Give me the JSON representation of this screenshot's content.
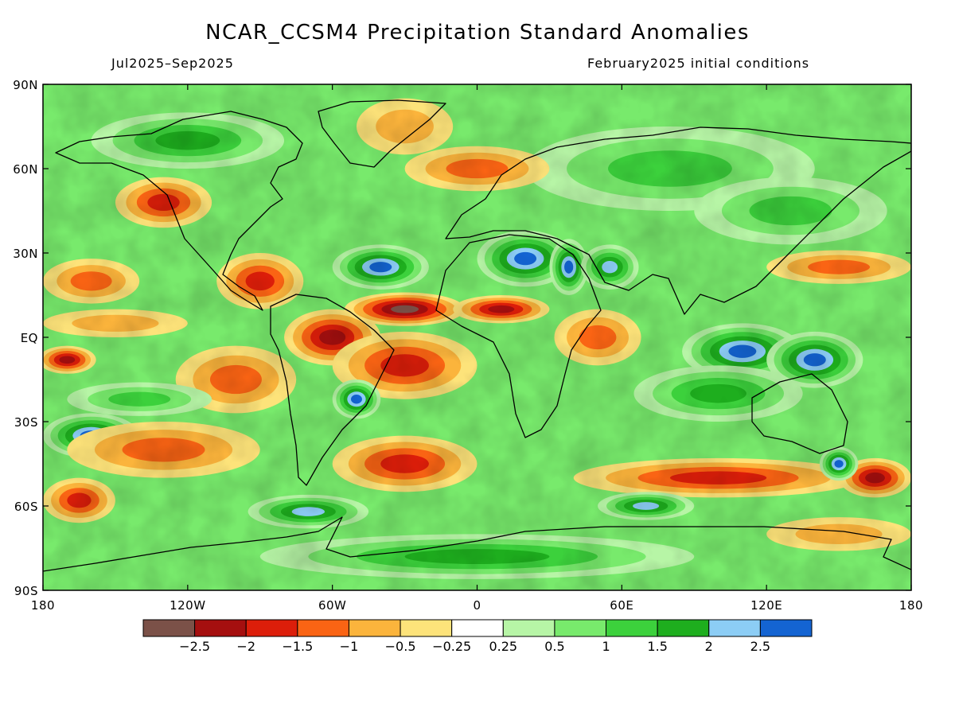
{
  "title": "NCAR_CCSM4 Precipitation Standard Anomalies",
  "subtitle_left": "Jul2025–Sep2025",
  "subtitle_right": "February2025 initial conditions",
  "axes": {
    "lat_labels": [
      "90N",
      "60N",
      "30N",
      "EQ",
      "30S",
      "60S",
      "90S"
    ],
    "lon_labels": [
      "180",
      "120W",
      "60W",
      "0",
      "60E",
      "120E",
      "180"
    ]
  },
  "colorbar": {
    "colors": [
      "#7b5148",
      "#a50f0f",
      "#dc1e0a",
      "#fa6414",
      "#fbb43c",
      "#fde37a",
      "#ffffff",
      "#b7f5a6",
      "#78ea6c",
      "#3cd13c",
      "#1eae1e",
      "#8ccdf5",
      "#1464d2"
    ],
    "labels": [
      "−2.5",
      "−2",
      "−1.5",
      "−1",
      "−0.5",
      "−0.25",
      "0.25",
      "0.5",
      "1",
      "1.5",
      "2",
      "2.5"
    ]
  },
  "fields": {
    "anomaly_blobs": [
      {
        "lon": -90,
        "lat": 20,
        "rx": 18,
        "ry": 10,
        "value": -1.5
      },
      {
        "lon": -130,
        "lat": 48,
        "rx": 20,
        "ry": 9,
        "value": -1.5
      },
      {
        "lon": -160,
        "lat": 20,
        "rx": 20,
        "ry": 8,
        "value": -1.0
      },
      {
        "lon": -150,
        "lat": 5,
        "rx": 30,
        "ry": 5,
        "value": -0.5
      },
      {
        "lon": -170,
        "lat": -8,
        "rx": 12,
        "ry": 5,
        "value": -2.0
      },
      {
        "lon": -100,
        "lat": -15,
        "rx": 25,
        "ry": 12,
        "value": -1.0
      },
      {
        "lon": -140,
        "lat": -22,
        "rx": 30,
        "ry": 6,
        "value": 1.0
      },
      {
        "lon": -160,
        "lat": -35,
        "rx": 20,
        "ry": 8,
        "value": 2.5
      },
      {
        "lon": -130,
        "lat": -40,
        "rx": 40,
        "ry": 10,
        "value": -1.0
      },
      {
        "lon": -165,
        "lat": -58,
        "rx": 15,
        "ry": 8,
        "value": -1.5
      },
      {
        "lon": -70,
        "lat": -62,
        "rx": 25,
        "ry": 6,
        "value": 2.0
      },
      {
        "lon": -60,
        "lat": 0,
        "rx": 20,
        "ry": 10,
        "value": -2.0
      },
      {
        "lon": -30,
        "lat": 10,
        "rx": 25,
        "ry": 6,
        "value": -2.5
      },
      {
        "lon": 10,
        "lat": 10,
        "rx": 20,
        "ry": 5,
        "value": -2.0
      },
      {
        "lon": -30,
        "lat": -10,
        "rx": 30,
        "ry": 12,
        "value": -1.5
      },
      {
        "lon": -50,
        "lat": -22,
        "rx": 10,
        "ry": 7,
        "value": 2.5
      },
      {
        "lon": -30,
        "lat": -45,
        "rx": 30,
        "ry": 10,
        "value": -1.5
      },
      {
        "lon": -40,
        "lat": 25,
        "rx": 20,
        "ry": 8,
        "value": 2.5
      },
      {
        "lon": 20,
        "lat": 28,
        "rx": 20,
        "ry": 10,
        "value": 2.5
      },
      {
        "lon": 38,
        "lat": 25,
        "rx": 8,
        "ry": 10,
        "value": 2.5
      },
      {
        "lon": 55,
        "lat": 25,
        "rx": 12,
        "ry": 8,
        "value": 2.0
      },
      {
        "lon": 50,
        "lat": 0,
        "rx": 18,
        "ry": 10,
        "value": -1.0
      },
      {
        "lon": 110,
        "lat": -5,
        "rx": 25,
        "ry": 10,
        "value": 2.5
      },
      {
        "lon": 140,
        "lat": -8,
        "rx": 20,
        "ry": 10,
        "value": 2.5
      },
      {
        "lon": 100,
        "lat": -20,
        "rx": 35,
        "ry": 10,
        "value": 1.5
      },
      {
        "lon": 100,
        "lat": -50,
        "rx": 60,
        "ry": 7,
        "value": -1.5
      },
      {
        "lon": 165,
        "lat": -50,
        "rx": 15,
        "ry": 7,
        "value": -2.0
      },
      {
        "lon": 150,
        "lat": -45,
        "rx": 8,
        "ry": 6,
        "value": 2.5
      },
      {
        "lon": 70,
        "lat": -60,
        "rx": 20,
        "ry": 5,
        "value": 2.0
      },
      {
        "lon": 80,
        "lat": 60,
        "rx": 60,
        "ry": 15,
        "value": 1.0
      },
      {
        "lon": 130,
        "lat": 45,
        "rx": 40,
        "ry": 12,
        "value": 1.0
      },
      {
        "lon": 150,
        "lat": 25,
        "rx": 30,
        "ry": 6,
        "value": -1.0
      },
      {
        "lon": -30,
        "lat": 75,
        "rx": 20,
        "ry": 10,
        "value": -0.5
      },
      {
        "lon": 0,
        "lat": 60,
        "rx": 30,
        "ry": 8,
        "value": -1.0
      },
      {
        "lon": -120,
        "lat": 70,
        "rx": 40,
        "ry": 10,
        "value": 1.5
      },
      {
        "lon": 0,
        "lat": -78,
        "rx": 90,
        "ry": 8,
        "value": 1.5
      },
      {
        "lon": 150,
        "lat": -70,
        "rx": 30,
        "ry": 6,
        "value": -0.5
      }
    ]
  }
}
